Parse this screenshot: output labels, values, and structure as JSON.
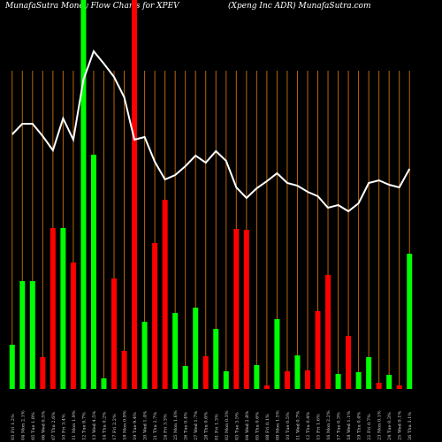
{
  "chart_data": {
    "type": "bar",
    "title": "MunafaSutra  Money Flow  Charts for XPEV",
    "subtitle": "(Xpeng Inc ADR) MunafaSutra.com",
    "categories": [
      "03 Fri 1.2%",
      "04 Mon 2.1%",
      "05 Tue 1.8%",
      "06 Wed 0.5%",
      "07 Thu 2.6%",
      "10 Fri 3.4%",
      "11 Mon 1.9%",
      "12 Tue 8.7%",
      "13 Wed 4.5%",
      "14 Thu 0.2%",
      "17 Fri 2.2%",
      "18 Mon 0.9%",
      "19 Tue 9.4%",
      "20 Wed 1.4%",
      "21 Thu 2.7%",
      "24 Fri 3.3%",
      "25 Mon 1.6%",
      "26 Tue 0.4%",
      "27 Wed 1.7%",
      "28 Thu 0.6%",
      "01 Fri 1.3%",
      "02 Mon 0.3%",
      "03 Tue 3.5%",
      "04 Wed 2.8%",
      "05 Thu 0.6%",
      "08 Fri 0.1%",
      "09 Mon 1.5%",
      "10 Tue 0.5%",
      "11 Wed 0.7%",
      "12 Thu 0.4%",
      "15 Fri 1.6%",
      "16 Mon 2.2%",
      "17 Tue 0.3%",
      "18 Wed 1.1%",
      "19 Thu 0.4%",
      "22 Fri 0.7%",
      "23 Mon 0.1%",
      "24 Tue 0.3%",
      "25 Wed 0.1%",
      "26 Thu 3.1%"
    ],
    "series": [
      {
        "name": "Money flow",
        "values": [
          50,
          122,
          122,
          36,
          182,
          182,
          143,
          440,
          265,
          12,
          125,
          43,
          440,
          76,
          165,
          214,
          86,
          26,
          92,
          37,
          68,
          20,
          181,
          180,
          27,
          4,
          79,
          20,
          38,
          21,
          88,
          129,
          17,
          60,
          19,
          36,
          7,
          16,
          4,
          153
        ],
        "colors": [
          "#0f0",
          "#0f0",
          "#0f0",
          "#f00",
          "#f00",
          "#0f0",
          "#f00",
          "#0f0",
          "#0f0",
          "#0f0",
          "#f00",
          "#f00",
          "#f00",
          "#0f0",
          "#f00",
          "#f00",
          "#0f0",
          "#0f0",
          "#0f0",
          "#f00",
          "#0f0",
          "#0f0",
          "#f00",
          "#f00",
          "#0f0",
          "#f00",
          "#0f0",
          "#f00",
          "#0f0",
          "#f00",
          "#f00",
          "#f00",
          "#0f0",
          "#f00",
          "#0f0",
          "#0f0",
          "#f00",
          "#0f0",
          "#f00",
          "#0f0"
        ]
      },
      {
        "name": "Price",
        "color": "#fff",
        "values": [
          288,
          300,
          300,
          286,
          270,
          306,
          282,
          350,
          382,
          368,
          353,
          330,
          282,
          285,
          257,
          237,
          242,
          252,
          264,
          256,
          269,
          258,
          228,
          216,
          227,
          235,
          244,
          233,
          230,
          223,
          218,
          205,
          208,
          201,
          210,
          233,
          236,
          231,
          228,
          249
        ]
      }
    ],
    "ylim": [
      0,
      440
    ],
    "grid": true,
    "grid_color": "#b8660b"
  }
}
